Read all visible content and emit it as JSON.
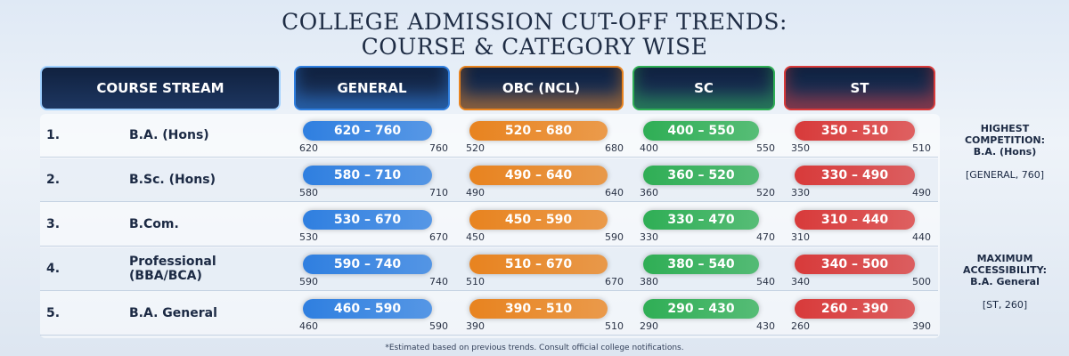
{
  "header": {
    "title_lines": [
      "COLLEGE ADMISSION CUT-OFF TRENDS:",
      "COURSE & CATEGORY WISE"
    ]
  },
  "table": {
    "columns": [
      {
        "label": "COURSE STREAM",
        "color": "#9fd0ff"
      },
      {
        "label": "GENERAL",
        "color": "#2f7fe0"
      },
      {
        "label": "OBC (NCL)",
        "color": "#e8831f"
      },
      {
        "label": "SC",
        "color": "#2fae55"
      },
      {
        "label": "ST",
        "color": "#d83a3a"
      }
    ],
    "rows": [
      {
        "number": "1.",
        "course": "B.A. (Hons)",
        "cells": [
          {
            "label": "620 – 760",
            "min": 620,
            "max": 760
          },
          {
            "label": "520 – 680",
            "min": 520,
            "max": 680
          },
          {
            "label": "400 – 550",
            "min": 400,
            "max": 550
          },
          {
            "label": "350 – 510",
            "min": 350,
            "max": 510
          }
        ]
      },
      {
        "number": "2.",
        "course": "B.Sc. (Hons)",
        "cells": [
          {
            "label": "580 – 710",
            "min": 580,
            "max": 710
          },
          {
            "label": "490 – 640",
            "min": 490,
            "max": 640
          },
          {
            "label": "360 – 520",
            "min": 360,
            "max": 520
          },
          {
            "label": "330 – 490",
            "min": 330,
            "max": 490
          }
        ]
      },
      {
        "number": "3.",
        "course": "B.Com.",
        "cells": [
          {
            "label": "530 – 670",
            "min": 530,
            "max": 670
          },
          {
            "label": "450 – 590",
            "min": 450,
            "max": 590
          },
          {
            "label": "330 – 470",
            "min": 330,
            "max": 470
          },
          {
            "label": "310 – 440",
            "min": 310,
            "max": 440
          }
        ]
      },
      {
        "number": "4.",
        "course": "Professional (BBA/BCA)",
        "cells": [
          {
            "label": "590 – 740",
            "min": 590,
            "max": 740
          },
          {
            "label": "510 – 670",
            "min": 510,
            "max": 670
          },
          {
            "label": "380 – 540",
            "min": 380,
            "max": 540
          },
          {
            "label": "340 – 500",
            "min": 340,
            "max": 500
          }
        ]
      },
      {
        "number": "5.",
        "course": "B.A. General",
        "cells": [
          {
            "label": "460 – 590",
            "min": 460,
            "max": 590
          },
          {
            "label": "390 – 510",
            "min": 390,
            "max": 510
          },
          {
            "label": "290 – 430",
            "min": 290,
            "max": 430
          },
          {
            "label": "260 – 390",
            "min": 260,
            "max": 390
          }
        ]
      }
    ]
  },
  "notes": [
    {
      "heading": "HIGHEST COMPETITION:",
      "course": "B.A. (Hons)",
      "detail": "[GENERAL, 760]"
    },
    {
      "heading": "MAXIMUM ACCESSIBILITY:",
      "course": "B.A. General",
      "detail": "[ST, 260]"
    }
  ],
  "footnote": "*Estimated based on previous trends. Consult official college notifications."
}
